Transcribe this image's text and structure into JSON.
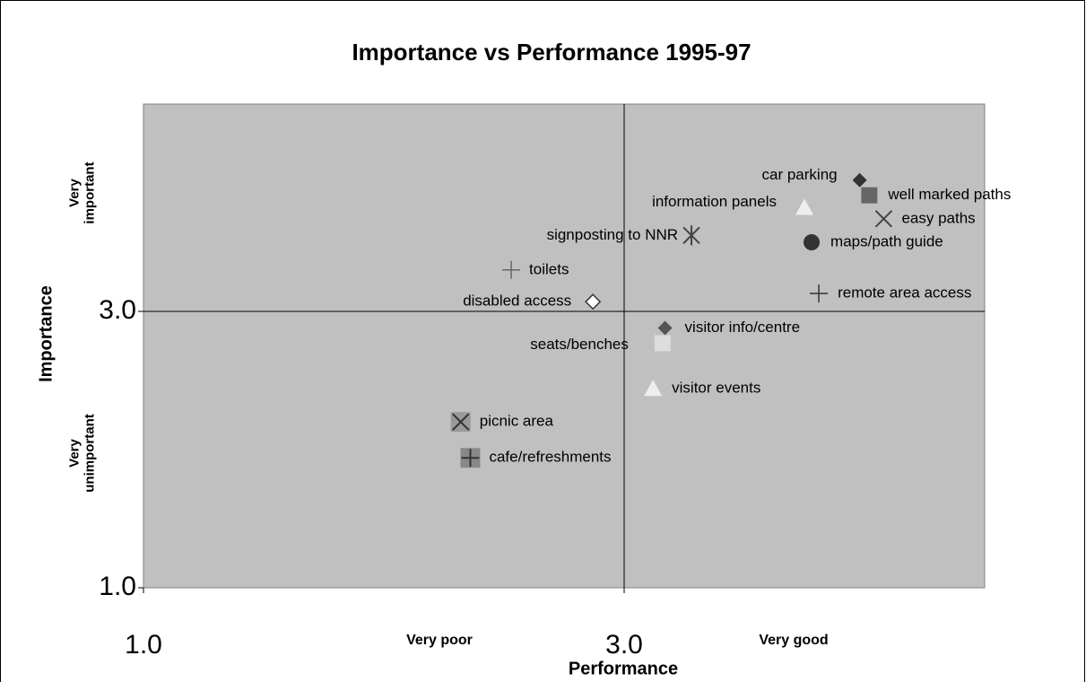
{
  "chart_data": {
    "type": "scatter",
    "title": "Importance vs Performance 1995-97",
    "x_label": "Performance",
    "y_label": "Importance",
    "x_annotations": [
      "Very poor",
      "Very good"
    ],
    "y_annotations": [
      "Very important",
      "Very unimportant"
    ],
    "xlim": [
      1,
      4.5
    ],
    "ylim": [
      1,
      4.5
    ],
    "xticks": [
      {
        "value": 1,
        "label": "1.0"
      },
      {
        "value": 3,
        "label": "3.0"
      }
    ],
    "yticks": [
      {
        "value": 1,
        "label": "1.0"
      },
      {
        "value": 3,
        "label": "3.0"
      }
    ],
    "grid": true,
    "plot_color": "#c0c0c0",
    "points": [
      {
        "label": "car parking",
        "x": 3.98,
        "y": 3.95,
        "marker": "diamond",
        "color": "#333333"
      },
      {
        "label": "well marked paths",
        "x": 4.02,
        "y": 3.84,
        "marker": "square",
        "color": "#666666"
      },
      {
        "label": "information panels",
        "x": 3.75,
        "y": 3.75,
        "marker": "triangle",
        "color": "#eeeeee"
      },
      {
        "label": "easy paths",
        "x": 4.08,
        "y": 3.67,
        "marker": "x",
        "color": "#444444"
      },
      {
        "label": "signposting to NNR",
        "x": 3.28,
        "y": 3.55,
        "marker": "asterisk",
        "color": "#444444"
      },
      {
        "label": "maps/path guide",
        "x": 3.78,
        "y": 3.5,
        "marker": "circle",
        "color": "#333333"
      },
      {
        "label": "toilets",
        "x": 2.53,
        "y": 3.3,
        "marker": "plus",
        "color": "#666666"
      },
      {
        "label": "remote area access",
        "x": 3.81,
        "y": 3.13,
        "marker": "plus",
        "color": "#333333"
      },
      {
        "label": "disabled access",
        "x": 2.87,
        "y": 3.07,
        "marker": "open-diamond",
        "color": "#333333"
      },
      {
        "label": "visitor info/centre",
        "x": 3.17,
        "y": 2.88,
        "marker": "diamond",
        "color": "#555555"
      },
      {
        "label": "seats/benches",
        "x": 3.16,
        "y": 2.77,
        "marker": "square",
        "color": "#dddddd"
      },
      {
        "label": "visitor events",
        "x": 3.12,
        "y": 2.44,
        "marker": "triangle",
        "color": "#eeeeee"
      },
      {
        "label": "picnic area",
        "x": 2.32,
        "y": 2.2,
        "marker": "x-box",
        "color": "#999999"
      },
      {
        "label": "cafe/refreshments",
        "x": 2.36,
        "y": 1.94,
        "marker": "plus-box",
        "color": "#888888"
      }
    ]
  }
}
